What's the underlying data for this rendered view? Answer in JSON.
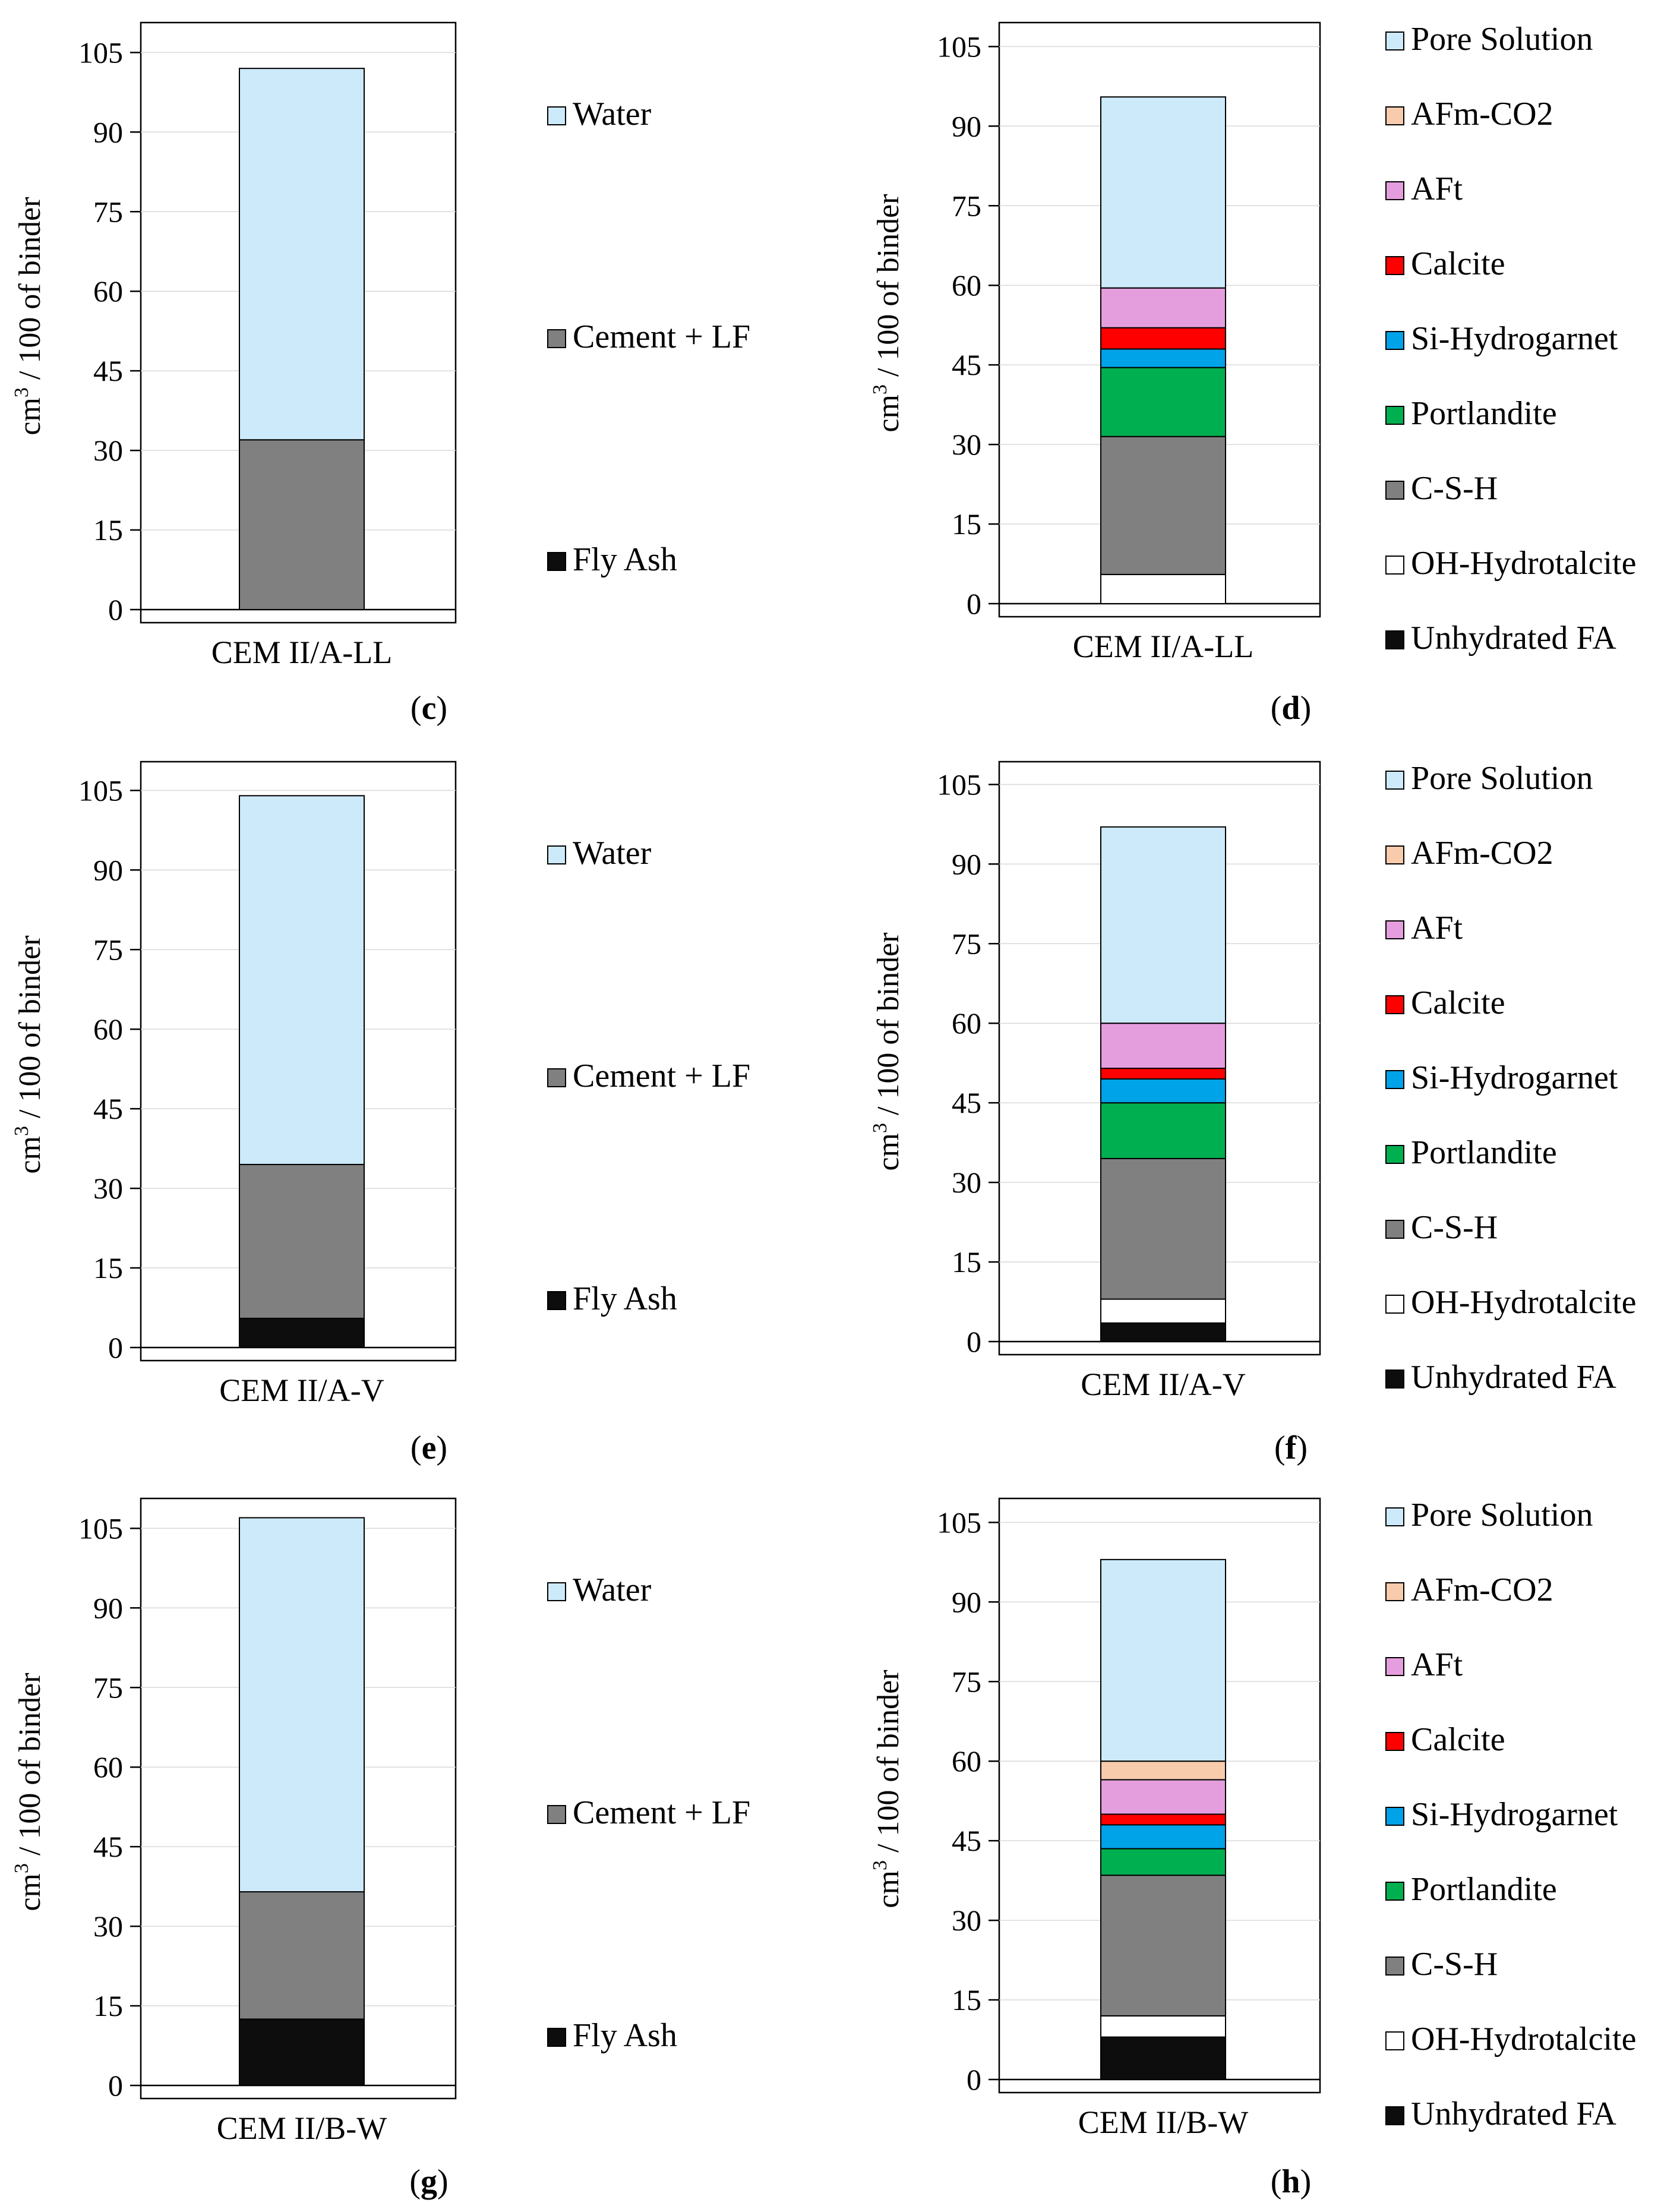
{
  "figure": {
    "y_axis_label": "cm",
    "y_axis_label_sup": "3",
    "y_axis_label_suffix": " / 100 of binder"
  },
  "colors": {
    "Water": "#cdeafa",
    "Cement + LF": "#808080",
    "Fly Ash": "#0d0d0d",
    "Pore Solution": "#cdeafa",
    "AFm-CO2": "#f8cbad",
    "AFt": "#e59edd",
    "Calcite": "#ff0000",
    "Si-Hydrogarnet": "#00a2e8",
    "Portlandite": "#00b050",
    "C-S-H": "#808080",
    "OH-Hydrotalcite": "#ffffff",
    "Unhydrated FA": "#0d0d0d"
  },
  "chart_data": [
    {
      "panel": "c",
      "type": "bar",
      "stacked": true,
      "categories": [
        "CEM II/A-LL"
      ],
      "ylabel": "cm3 / 100 of binder",
      "ylim": [
        0,
        110
      ],
      "yticks": [
        0,
        15,
        30,
        45,
        60,
        75,
        90,
        105
      ],
      "legend": [
        "Water",
        "Cement + LF",
        "Fly Ash"
      ],
      "series": [
        {
          "name": "Fly Ash",
          "values": [
            0
          ]
        },
        {
          "name": "Cement + LF",
          "values": [
            32
          ]
        },
        {
          "name": "Water",
          "values": [
            70
          ]
        }
      ]
    },
    {
      "panel": "d",
      "type": "bar",
      "stacked": true,
      "categories": [
        "CEM II/A-LL"
      ],
      "ylabel": "cm3 / 100 of binder",
      "ylim": [
        0,
        110
      ],
      "yticks": [
        0,
        15,
        30,
        45,
        60,
        75,
        90,
        105
      ],
      "legend": [
        "Pore Solution",
        "AFm-CO2",
        "AFt",
        "Calcite",
        "Si-Hydrogarnet",
        "Portlandite",
        "C-S-H",
        "OH-Hydrotalcite",
        "Unhydrated FA"
      ],
      "series": [
        {
          "name": "Unhydrated FA",
          "values": [
            0
          ]
        },
        {
          "name": "OH-Hydrotalcite",
          "values": [
            5.5
          ]
        },
        {
          "name": "C-S-H",
          "values": [
            26
          ]
        },
        {
          "name": "Portlandite",
          "values": [
            13
          ]
        },
        {
          "name": "Si-Hydrogarnet",
          "values": [
            3.5
          ]
        },
        {
          "name": "Calcite",
          "values": [
            4
          ]
        },
        {
          "name": "AFt",
          "values": [
            7.5
          ]
        },
        {
          "name": "AFm-CO2",
          "values": [
            0
          ]
        },
        {
          "name": "Pore Solution",
          "values": [
            36
          ]
        }
      ]
    },
    {
      "panel": "e",
      "type": "bar",
      "stacked": true,
      "categories": [
        "CEM II/A-V"
      ],
      "ylabel": "cm3 / 100 of binder",
      "ylim": [
        0,
        110
      ],
      "yticks": [
        0,
        15,
        30,
        45,
        60,
        75,
        90,
        105
      ],
      "legend": [
        "Water",
        "Cement + LF",
        "Fly Ash"
      ],
      "series": [
        {
          "name": "Fly Ash",
          "values": [
            5.5
          ]
        },
        {
          "name": "Cement + LF",
          "values": [
            29
          ]
        },
        {
          "name": "Water",
          "values": [
            69.5
          ]
        }
      ]
    },
    {
      "panel": "f",
      "type": "bar",
      "stacked": true,
      "categories": [
        "CEM II/A-V"
      ],
      "ylabel": "cm3 / 100 of binder",
      "ylim": [
        0,
        110
      ],
      "yticks": [
        0,
        15,
        30,
        45,
        60,
        75,
        90,
        105
      ],
      "legend": [
        "Pore Solution",
        "AFm-CO2",
        "AFt",
        "Calcite",
        "Si-Hydrogarnet",
        "Portlandite",
        "C-S-H",
        "OH-Hydrotalcite",
        "Unhydrated FA"
      ],
      "series": [
        {
          "name": "Unhydrated FA",
          "values": [
            3.5
          ]
        },
        {
          "name": "OH-Hydrotalcite",
          "values": [
            4.5
          ]
        },
        {
          "name": "C-S-H",
          "values": [
            26.5
          ]
        },
        {
          "name": "Portlandite",
          "values": [
            10.5
          ]
        },
        {
          "name": "Si-Hydrogarnet",
          "values": [
            4.5
          ]
        },
        {
          "name": "Calcite",
          "values": [
            2
          ]
        },
        {
          "name": "AFt",
          "values": [
            8.5
          ]
        },
        {
          "name": "AFm-CO2",
          "values": [
            0
          ]
        },
        {
          "name": "Pore Solution",
          "values": [
            37
          ]
        }
      ]
    },
    {
      "panel": "g",
      "type": "bar",
      "stacked": true,
      "categories": [
        "CEM II/B-W"
      ],
      "ylabel": "cm3 / 100 of binder",
      "ylim": [
        0,
        110
      ],
      "yticks": [
        0,
        15,
        30,
        45,
        60,
        75,
        90,
        105
      ],
      "legend": [
        "Water",
        "Cement + LF",
        "Fly Ash"
      ],
      "series": [
        {
          "name": "Fly Ash",
          "values": [
            12.5
          ]
        },
        {
          "name": "Cement + LF",
          "values": [
            24
          ]
        },
        {
          "name": "Water",
          "values": [
            70.5
          ]
        }
      ]
    },
    {
      "panel": "h",
      "type": "bar",
      "stacked": true,
      "categories": [
        "CEM II/B-W"
      ],
      "ylabel": "cm3 / 100 of binder",
      "ylim": [
        0,
        110
      ],
      "yticks": [
        0,
        15,
        30,
        45,
        60,
        75,
        90,
        105
      ],
      "legend": [
        "Pore Solution",
        "AFm-CO2",
        "AFt",
        "Calcite",
        "Si-Hydrogarnet",
        "Portlandite",
        "C-S-H",
        "OH-Hydrotalcite",
        "Unhydrated FA"
      ],
      "series": [
        {
          "name": "Unhydrated FA",
          "values": [
            8
          ]
        },
        {
          "name": "OH-Hydrotalcite",
          "values": [
            4
          ]
        },
        {
          "name": "C-S-H",
          "values": [
            26.5
          ]
        },
        {
          "name": "Portlandite",
          "values": [
            5
          ]
        },
        {
          "name": "Si-Hydrogarnet",
          "values": [
            4.5
          ]
        },
        {
          "name": "Calcite",
          "values": [
            2
          ]
        },
        {
          "name": "AFt",
          "values": [
            6.5
          ]
        },
        {
          "name": "AFm-CO2",
          "values": [
            3.5
          ]
        },
        {
          "name": "Pore Solution",
          "values": [
            38
          ]
        }
      ]
    }
  ]
}
